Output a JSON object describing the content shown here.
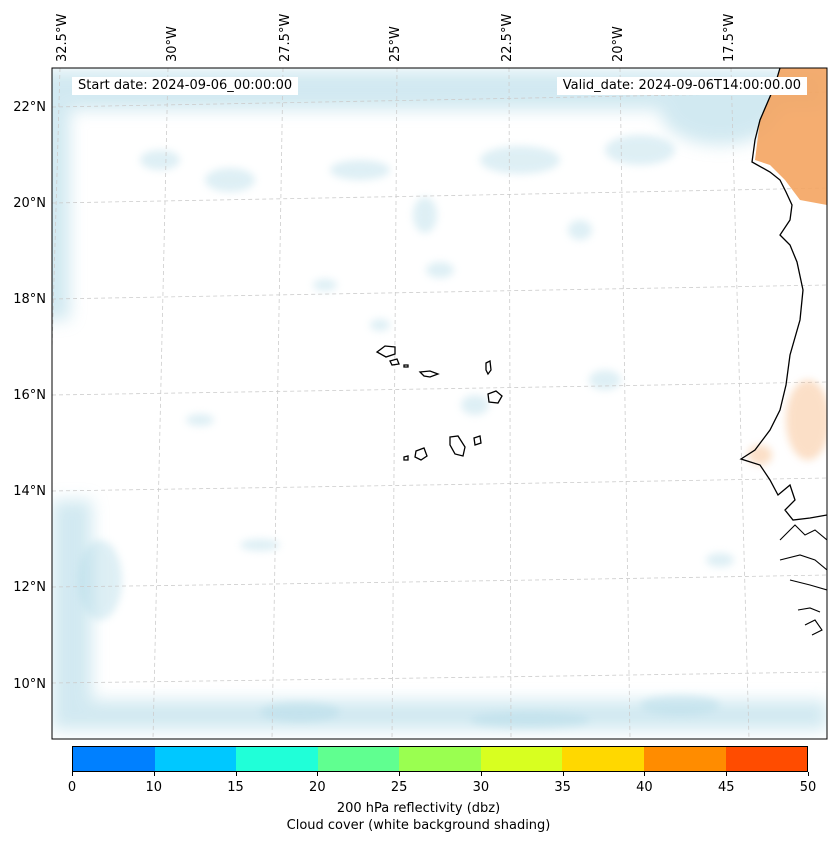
{
  "map": {
    "start_date": "Start date: 2024-09-06_00:00:00",
    "valid_date": "Valid_date: 2024-09-06T14:00:00.00",
    "lon_labels": [
      "32.5°W",
      "30°W",
      "27.5°W",
      "25°W",
      "22.5°W",
      "20°W",
      "17.5°W"
    ],
    "lat_labels": [
      "22°N",
      "20°N",
      "18°N",
      "16°N",
      "14°N",
      "12°N",
      "10°N"
    ],
    "land_color": "#f4a460"
  },
  "colorbar": {
    "ticks": [
      "0",
      "10",
      "15",
      "20",
      "25",
      "30",
      "35",
      "40",
      "45",
      "50"
    ],
    "colors": [
      "#0080ff",
      "#00c8ff",
      "#20ffd8",
      "#60ff90",
      "#9aff50",
      "#d8ff20",
      "#ffd800",
      "#ff8c00",
      "#ff4c00"
    ],
    "label_line1": "200 hPa reflectivity (dbz)",
    "label_line2": "Cloud cover (white background shading)"
  }
}
